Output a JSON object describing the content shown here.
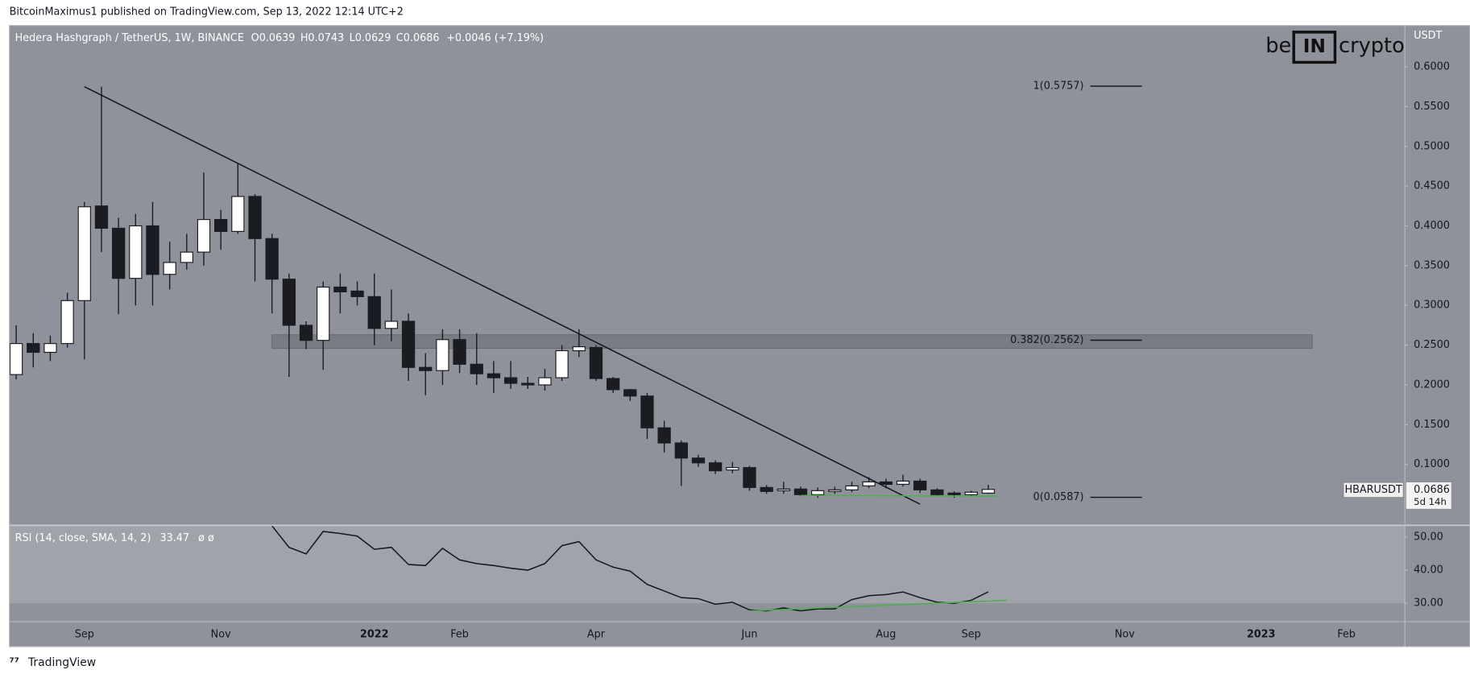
{
  "header": {
    "credit": "BitcoinMaximus1 published on TradingView.com, Sep 13, 2022 12:14 UTC+2",
    "logo": [
      "be",
      "IN",
      "crypto"
    ]
  },
  "footer": "TradingView",
  "chart_data": [
    {
      "type": "candlestick",
      "title": "Hedera Hashgraph / TetherUS, 1W, BINANCE",
      "symbol": "HBARUSDT",
      "axis_label": "USDT",
      "legend_keys": [
        "O",
        "H",
        "L",
        "C"
      ],
      "change": "+0.0046 (+7.19%)",
      "countdown": "5d 14h",
      "up_color": "#ffffff",
      "down_color": "#1b1c22",
      "open": [
        0.213,
        0.252,
        0.241,
        0.252,
        0.306,
        0.425,
        0.397,
        0.334,
        0.4,
        0.339,
        0.354,
        0.367,
        0.408,
        0.393,
        0.437,
        0.384,
        0.333,
        0.275,
        0.256,
        0.323,
        0.318,
        0.311,
        0.271,
        0.28,
        0.222,
        0.218,
        0.257,
        0.226,
        0.214,
        0.209,
        0.202,
        0.2,
        0.209,
        0.243,
        0.247,
        0.208,
        0.194,
        0.186,
        0.146,
        0.127,
        0.108,
        0.102,
        0.093,
        0.096,
        0.071,
        0.067,
        0.069,
        0.062,
        0.066,
        0.068,
        0.073,
        0.078,
        0.075,
        0.079,
        0.068,
        0.064,
        0.062,
        0.0639
      ],
      "high": [
        0.275,
        0.265,
        0.262,
        0.316,
        0.43,
        0.575,
        0.41,
        0.415,
        0.43,
        0.38,
        0.39,
        0.467,
        0.42,
        0.478,
        0.44,
        0.39,
        0.34,
        0.28,
        0.33,
        0.34,
        0.33,
        0.34,
        0.32,
        0.29,
        0.24,
        0.27,
        0.27,
        0.265,
        0.23,
        0.23,
        0.21,
        0.22,
        0.25,
        0.27,
        0.25,
        0.21,
        0.195,
        0.19,
        0.155,
        0.13,
        0.112,
        0.105,
        0.103,
        0.098,
        0.074,
        0.078,
        0.072,
        0.071,
        0.072,
        0.078,
        0.084,
        0.082,
        0.087,
        0.082,
        0.07,
        0.066,
        0.067,
        0.0743
      ],
      "low": [
        0.207,
        0.222,
        0.23,
        0.247,
        0.232,
        0.367,
        0.289,
        0.3,
        0.3,
        0.32,
        0.345,
        0.35,
        0.37,
        0.39,
        0.33,
        0.29,
        0.21,
        0.245,
        0.219,
        0.29,
        0.3,
        0.25,
        0.255,
        0.205,
        0.187,
        0.2,
        0.215,
        0.2,
        0.19,
        0.195,
        0.195,
        0.193,
        0.205,
        0.235,
        0.205,
        0.19,
        0.18,
        0.132,
        0.115,
        0.073,
        0.097,
        0.088,
        0.089,
        0.067,
        0.063,
        0.063,
        0.06,
        0.058,
        0.063,
        0.065,
        0.07,
        0.07,
        0.072,
        0.064,
        0.06,
        0.058,
        0.06,
        0.0629
      ],
      "close": [
        0.252,
        0.241,
        0.252,
        0.306,
        0.424,
        0.397,
        0.334,
        0.4,
        0.339,
        0.354,
        0.367,
        0.408,
        0.393,
        0.437,
        0.384,
        0.333,
        0.275,
        0.256,
        0.323,
        0.317,
        0.311,
        0.271,
        0.28,
        0.222,
        0.218,
        0.257,
        0.226,
        0.214,
        0.209,
        0.202,
        0.2,
        0.209,
        0.243,
        0.248,
        0.208,
        0.194,
        0.186,
        0.146,
        0.127,
        0.108,
        0.102,
        0.092,
        0.096,
        0.071,
        0.066,
        0.069,
        0.062,
        0.067,
        0.068,
        0.073,
        0.078,
        0.075,
        0.079,
        0.068,
        0.062,
        0.062,
        0.065,
        0.0686
      ],
      "xlim": [
        -0.4,
        81.4
      ],
      "ylim": [
        0.024,
        0.652
      ],
      "yticks": [
        {
          "value": 0.1,
          "label": "0.1000"
        },
        {
          "value": 0.15,
          "label": "0.1500"
        },
        {
          "value": 0.2,
          "label": "0.2000"
        },
        {
          "value": 0.25,
          "label": "0.2500"
        },
        {
          "value": 0.3,
          "label": "0.3000"
        },
        {
          "value": 0.35,
          "label": "0.3500"
        },
        {
          "value": 0.4,
          "label": "0.4000"
        },
        {
          "value": 0.45,
          "label": "0.4500"
        },
        {
          "value": 0.5,
          "label": "0.5000"
        },
        {
          "value": 0.55,
          "label": "0.5500"
        },
        {
          "value": 0.6,
          "label": "0.6000"
        }
      ],
      "fib_levels": [
        {
          "value": 0.5757,
          "label": "1(0.5757)"
        },
        {
          "value": 0.2562,
          "label": "0.382(0.2562)"
        },
        {
          "value": 0.0587,
          "label": "0(0.0587)"
        }
      ],
      "zone": {
        "x": [
          15,
          76
        ],
        "y": [
          0.246,
          0.263
        ]
      },
      "trendline": {
        "x": [
          4,
          53
        ],
        "y": [
          0.575,
          0.05
        ],
        "color": "#131722"
      },
      "support_line": {
        "x": [
          46,
          57.5
        ],
        "y": [
          0.061,
          0.06
        ],
        "color": "#4caf50"
      }
    },
    {
      "type": "line",
      "title": "RSI (14, close, SMA, 14, 2)",
      "extra": "ø ø",
      "color": "#131722",
      "values": [
        null,
        null,
        null,
        null,
        null,
        null,
        null,
        null,
        null,
        null,
        null,
        null,
        null,
        null,
        null,
        53.4,
        46.9,
        44.9,
        51.7,
        51.1,
        50.3,
        46.3,
        46.9,
        41.7,
        41.4,
        46.6,
        43.1,
        42,
        41.4,
        40.6,
        40,
        42,
        47.4,
        48.6,
        43.1,
        40.9,
        39.7,
        35.7,
        33.7,
        31.7,
        31.4,
        29.7,
        30.3,
        28,
        27.7,
        28.6,
        27.7,
        28.3,
        28.3,
        31.1,
        32.3,
        32.6,
        33.4,
        31.7,
        30.3,
        30,
        30.9,
        33.47
      ],
      "xlim": [
        -0.4,
        81.4
      ],
      "ylim": [
        24.6,
        53.4
      ],
      "yticks": [
        {
          "value": 30,
          "label": "30.00"
        },
        {
          "value": 40,
          "label": "40.00"
        },
        {
          "value": 50,
          "label": "50.00"
        }
      ],
      "xticks": [
        {
          "value": 4,
          "label": "Sep"
        },
        {
          "value": 12,
          "label": "Nov"
        },
        {
          "value": 21,
          "label": "2022"
        },
        {
          "value": 26,
          "label": "Feb"
        },
        {
          "value": 34,
          "label": "Apr"
        },
        {
          "value": 43,
          "label": "Jun"
        },
        {
          "value": 51,
          "label": "Aug"
        },
        {
          "value": 56,
          "label": "Sep"
        },
        {
          "value": 65,
          "label": "Nov"
        },
        {
          "value": 73,
          "label": "2023"
        },
        {
          "value": 78,
          "label": "Feb"
        }
      ],
      "divergence_line": {
        "x": [
          43,
          58.1
        ],
        "y": [
          27.7,
          30.9
        ],
        "color": "#4caf50"
      }
    }
  ]
}
